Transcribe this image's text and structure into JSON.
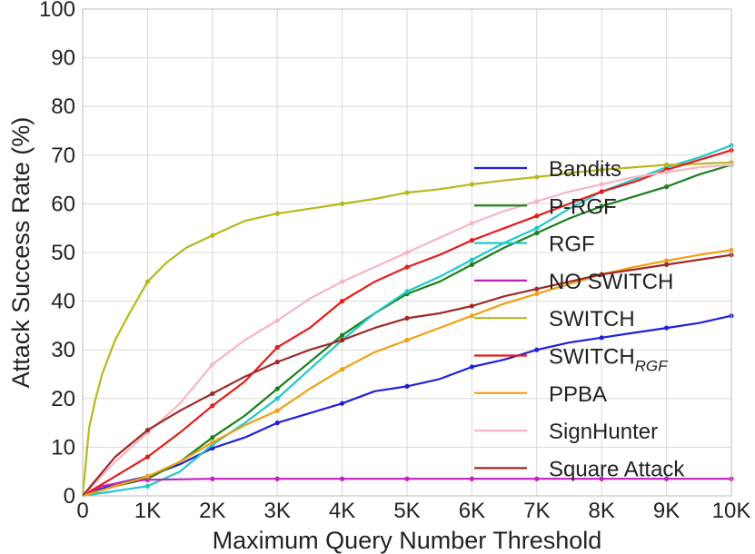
{
  "chart_data": {
    "type": "line",
    "xlabel": "Maximum Query Number Threshold",
    "ylabel": "Attack Success Rate (%)",
    "xlim": [
      0,
      10000
    ],
    "ylim": [
      0,
      100
    ],
    "grid": true,
    "legend_position": "right",
    "x_ticks": [
      0,
      1000,
      2000,
      3000,
      4000,
      5000,
      6000,
      7000,
      8000,
      9000,
      10000
    ],
    "x_tick_labels": [
      "0",
      "1K",
      "2K",
      "3K",
      "4K",
      "5K",
      "6K",
      "7K",
      "8K",
      "9K",
      "10K"
    ],
    "y_ticks": [
      0,
      10,
      20,
      30,
      40,
      50,
      60,
      70,
      80,
      90,
      100
    ],
    "y_tick_labels": [
      "0",
      "10",
      "20",
      "30",
      "40",
      "50",
      "60",
      "70",
      "80",
      "90",
      "100"
    ],
    "series": [
      {
        "name": "Bandits",
        "color": "#1f1fdc",
        "x": [
          0,
          500,
          1000,
          1500,
          2000,
          2500,
          3000,
          3500,
          4000,
          4500,
          5000,
          5500,
          6000,
          6500,
          7000,
          7500,
          8000,
          8500,
          9000,
          9500,
          10000
        ],
        "y": [
          0,
          2.5,
          4,
          6.5,
          9.8,
          12,
          15,
          17,
          19,
          21.5,
          22.5,
          24,
          26.5,
          28,
          30,
          31.5,
          32.5,
          33.5,
          34.5,
          35.5,
          37
        ]
      },
      {
        "name": "P-RGF",
        "color": "#1a7f1a",
        "x": [
          0,
          500,
          1000,
          1500,
          2000,
          2500,
          3000,
          3500,
          4000,
          4500,
          5000,
          5500,
          6000,
          6500,
          7000,
          7500,
          8000,
          8500,
          9000,
          9500,
          10000
        ],
        "y": [
          0,
          2,
          3.5,
          7,
          12,
          16.5,
          22,
          27.5,
          33,
          37.5,
          41.5,
          44,
          47.5,
          51,
          54,
          57,
          59.5,
          61.5,
          63.5,
          66,
          68
        ]
      },
      {
        "name": "RGF",
        "color": "#1ec8c8",
        "x": [
          0,
          500,
          1000,
          1500,
          2000,
          2500,
          3000,
          3500,
          4000,
          4500,
          5000,
          5500,
          6000,
          6500,
          7000,
          7500,
          8000,
          8500,
          9000,
          9500,
          10000
        ],
        "y": [
          0,
          1,
          2,
          5,
          10.5,
          15,
          20,
          26,
          32,
          37.5,
          42,
          45,
          48.5,
          52,
          55,
          59,
          62.5,
          65,
          67.5,
          69.5,
          72
        ]
      },
      {
        "name": "NO SWITCH",
        "color": "#c020c0",
        "x": [
          0,
          300,
          700,
          1000,
          2000,
          3000,
          4000,
          5000,
          6000,
          7000,
          8000,
          9000,
          10000
        ],
        "y": [
          0,
          2,
          3,
          3.3,
          3.5,
          3.5,
          3.5,
          3.5,
          3.5,
          3.5,
          3.5,
          3.5,
          3.5
        ]
      },
      {
        "name": "SWITCH",
        "color": "#b8b81a",
        "x": [
          0,
          100,
          200,
          300,
          500,
          700,
          1000,
          1300,
          1600,
          2000,
          2500,
          3000,
          3500,
          4000,
          4500,
          5000,
          5500,
          6000,
          6500,
          7000,
          7500,
          8000,
          8500,
          9000,
          9500,
          10000
        ],
        "y": [
          0,
          14,
          20,
          25,
          32,
          37,
          44,
          48,
          51,
          53.5,
          56.5,
          58,
          59,
          60,
          61,
          62.3,
          63,
          64,
          64.8,
          65.5,
          66.3,
          67,
          67.5,
          68,
          68.2,
          68.5
        ]
      },
      {
        "name": "SWITCH_RGF",
        "color": "#e81a1a",
        "x": [
          0,
          500,
          1000,
          1500,
          2000,
          2500,
          3000,
          3500,
          4000,
          4500,
          5000,
          5500,
          6000,
          6500,
          7000,
          7500,
          8000,
          8500,
          9000,
          9500,
          10000
        ],
        "y": [
          0,
          4,
          8,
          13,
          18.5,
          23.5,
          30.5,
          34.5,
          40,
          44,
          47,
          49.5,
          52.5,
          55,
          57.5,
          60,
          62.5,
          64.5,
          67,
          69,
          71
        ]
      },
      {
        "name": "PPBA",
        "color": "#f0a010",
        "x": [
          0,
          500,
          1000,
          1500,
          2000,
          2500,
          3000,
          3500,
          4000,
          4500,
          5000,
          5500,
          6000,
          6500,
          7000,
          7500,
          8000,
          8500,
          9000,
          9500,
          10000
        ],
        "y": [
          0,
          2,
          4,
          7,
          11,
          14.5,
          17.5,
          22,
          26,
          29.5,
          32,
          34.5,
          37,
          39.5,
          41.5,
          43.5,
          45.5,
          47,
          48.3,
          49.5,
          50.5
        ]
      },
      {
        "name": "SignHunter",
        "color": "#f8b4c4",
        "x": [
          0,
          500,
          1000,
          1500,
          2000,
          2500,
          3000,
          3500,
          4000,
          4500,
          5000,
          5500,
          6000,
          6500,
          7000,
          7500,
          8000,
          8500,
          9000,
          9500,
          10000
        ],
        "y": [
          0,
          7,
          13,
          19,
          27,
          32,
          36,
          40.5,
          44,
          47,
          50,
          53,
          56,
          58.5,
          60.5,
          62.5,
          64,
          65.5,
          66.5,
          67.5,
          68
        ]
      },
      {
        "name": "Square Attack",
        "color": "#a02828",
        "x": [
          0,
          500,
          1000,
          1500,
          2000,
          2500,
          3000,
          3500,
          4000,
          4500,
          5000,
          5500,
          6000,
          6500,
          7000,
          7500,
          8000,
          8500,
          9000,
          9500,
          10000
        ],
        "y": [
          0,
          8,
          13.5,
          17.5,
          21,
          24.5,
          27.5,
          30,
          32,
          34.5,
          36.5,
          37.5,
          39,
          41,
          42.5,
          44,
          45.5,
          46.5,
          47.5,
          48.5,
          49.5
        ]
      }
    ],
    "legend": [
      {
        "label": "Bandits",
        "color": "#1f1fdc"
      },
      {
        "label": "P-RGF",
        "color": "#1a7f1a"
      },
      {
        "label": "RGF",
        "color": "#1ec8c8"
      },
      {
        "label": "NO SWITCH",
        "color": "#c020c0"
      },
      {
        "label": "SWITCH",
        "color": "#b8b81a"
      },
      {
        "label": "SWITCH",
        "sub": "RGF",
        "color": "#e81a1a"
      },
      {
        "label": "PPBA",
        "color": "#f0a010"
      },
      {
        "label": "SignHunter",
        "color": "#f8b4c4"
      },
      {
        "label": "Square Attack",
        "color": "#a02828"
      }
    ]
  }
}
